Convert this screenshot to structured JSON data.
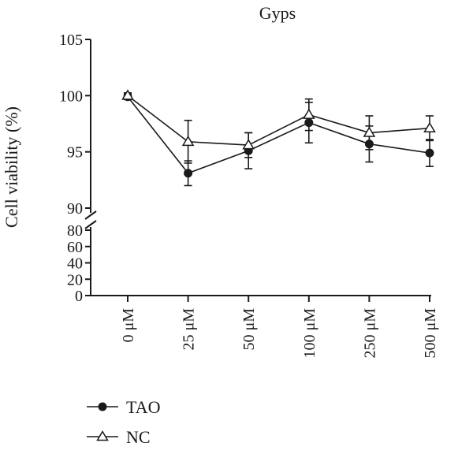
{
  "chart_data": {
    "type": "line",
    "title": "Gyps",
    "ylabel": "Cell viability (%)",
    "xlabel": "",
    "categories": [
      "0 μM",
      "25 μM",
      "50 μM",
      "100 μM",
      "250 μM",
      "500 μM"
    ],
    "y_axis_broken": true,
    "y_segments": [
      {
        "range": [
          0,
          80
        ],
        "ticks": [
          0,
          20,
          40,
          60,
          80
        ]
      },
      {
        "range": [
          90,
          105
        ],
        "ticks": [
          90,
          95,
          100,
          105
        ]
      }
    ],
    "series": [
      {
        "name": "TAO",
        "marker": "filled-circle",
        "values": [
          99.9,
          93.1,
          95.1,
          97.6,
          95.7,
          94.9
        ],
        "errors": [
          0.25,
          1.1,
          1.6,
          1.8,
          1.6,
          1.2
        ]
      },
      {
        "name": "NC",
        "marker": "open-triangle",
        "values": [
          100.0,
          95.9,
          95.6,
          98.3,
          96.7,
          97.1
        ],
        "errors": [
          0.25,
          1.9,
          1.1,
          1.4,
          1.5,
          1.1
        ]
      }
    ],
    "legend_position": "bottom-left"
  }
}
